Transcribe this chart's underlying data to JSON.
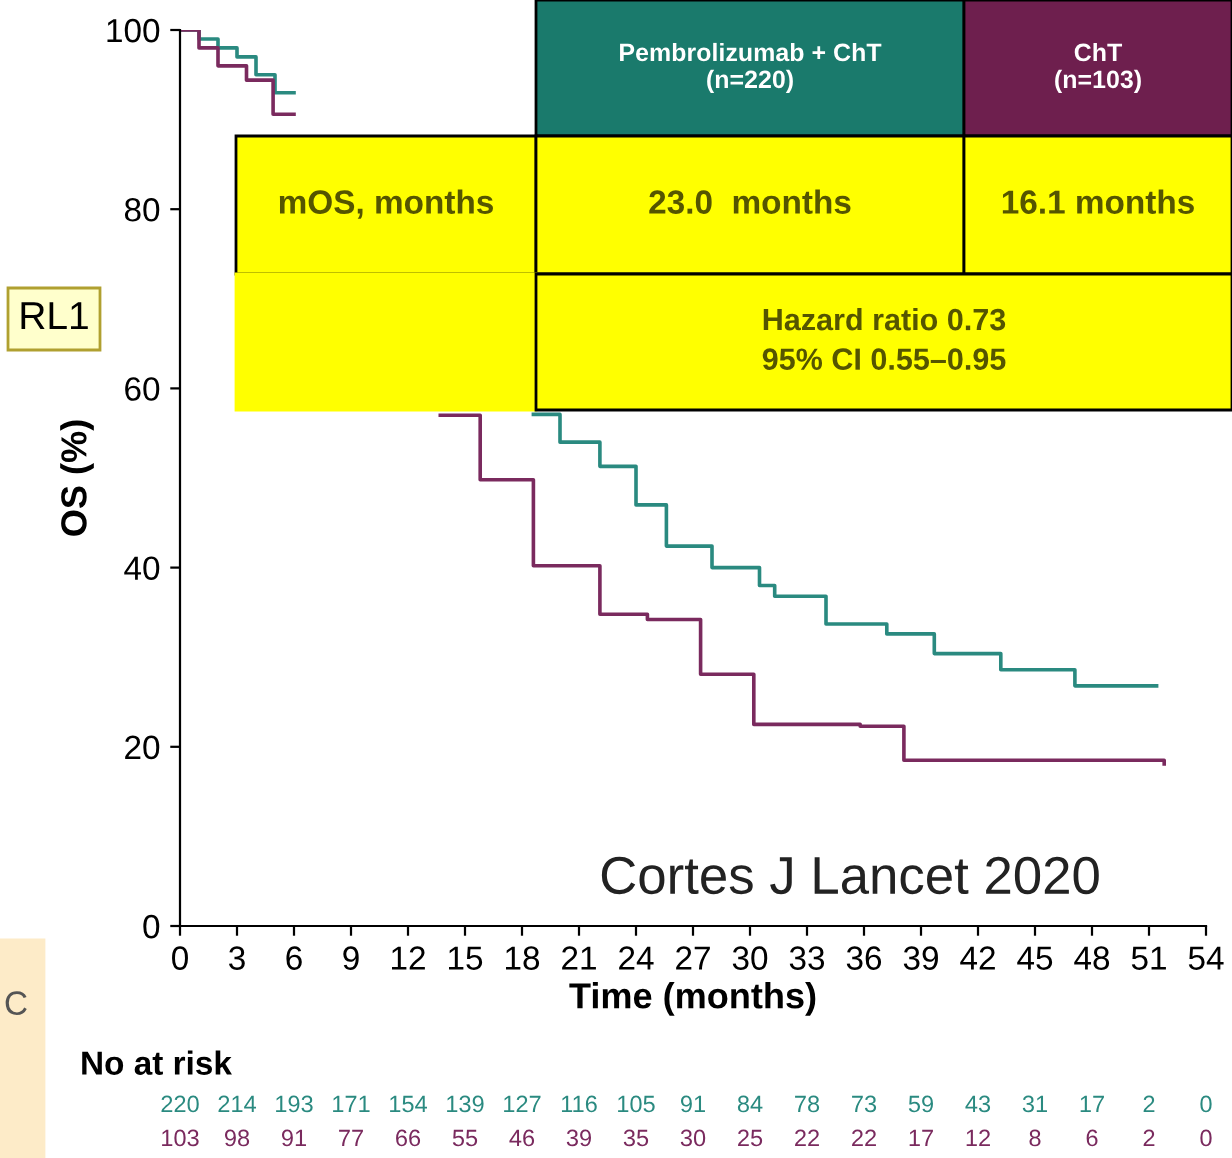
{
  "chart_data": {
    "type": "step",
    "xlabel": "Time (months)",
    "ylabel": "OS (%)",
    "xlim": [
      0,
      54
    ],
    "xticks": [
      0,
      3,
      6,
      9,
      12,
      15,
      18,
      21,
      24,
      27,
      30,
      33,
      36,
      39,
      42,
      45,
      48,
      51,
      54
    ],
    "ylim": [
      0,
      100
    ],
    "yticks": [
      0,
      20,
      40,
      60,
      80,
      100
    ],
    "grid": false,
    "legend": false,
    "series": [
      {
        "color": "#2a8a80",
        "x": [
          0,
          1,
          2,
          3,
          4,
          5,
          6,
          7,
          18.6,
          20,
          22.1,
          24,
          25.6,
          28,
          30.5,
          31.3,
          34,
          37.2,
          39.7,
          43.2,
          47.1,
          51.4
        ],
        "values": [
          100,
          99,
          98,
          97,
          95,
          93,
          null,
          null,
          57.1,
          54,
          51.3,
          47,
          42.4,
          40,
          38,
          36.8,
          33.7,
          32.6,
          30.4,
          28.6,
          26.8,
          26.8
        ]
      },
      {
        "color": "#7a2a5e",
        "x": [
          0,
          1,
          2,
          3.5,
          4.9,
          6,
          13.7,
          15.8,
          18.6,
          22.1,
          24.6,
          27.4,
          30.2,
          35.8,
          38.1,
          51.8
        ],
        "values": [
          100,
          98,
          96,
          94.4,
          90.6,
          null,
          57,
          49.8,
          40.2,
          34.8,
          34.2,
          28.1,
          22.5,
          22.3,
          18.5,
          18.1
        ]
      }
    ],
    "annotations": [
      "Pembrolizumab + ChT\n(n=220)",
      "ChT\n(n=103)",
      "mOS, months",
      "23.0  months",
      "16.1 months",
      "Hazard ratio 0.73\n95% CI 0.55–0.95",
      "Cortes J Lancet 2020",
      "RL1",
      "C",
      "No at risk",
      "220 214 193 171 154 139 127 116 105 91 84 78 73 59 43 31 17 2 0",
      "103 98 91 77 66 55 46 39 35 30 25 22 22 17 12 8 6 2 0"
    ]
  }
}
